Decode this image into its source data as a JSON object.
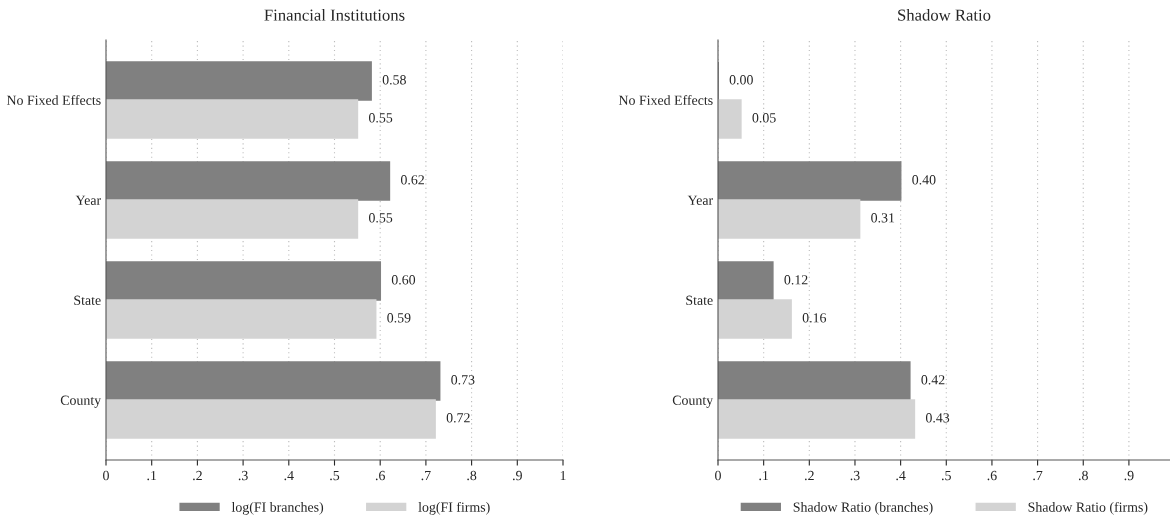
{
  "chart_data": [
    {
      "type": "bar",
      "orientation": "horizontal",
      "title": "Financial Institutions",
      "categories": [
        "No Fixed Effects",
        "Year",
        "State",
        "County"
      ],
      "series": [
        {
          "name": "log(FI branches)",
          "color": "#808080",
          "values": [
            0.58,
            0.62,
            0.6,
            0.73
          ],
          "value_labels": [
            "0.58",
            "0.62",
            "0.60",
            "0.73"
          ]
        },
        {
          "name": "log(FI firms)",
          "color": "#d3d3d3",
          "values": [
            0.55,
            0.55,
            0.59,
            0.72
          ],
          "value_labels": [
            "0.55",
            "0.55",
            "0.59",
            "0.72"
          ]
        }
      ],
      "xlim": [
        0,
        1
      ],
      "xticks": [
        0,
        {
          "value": 0.1,
          "label": ".1"
        },
        {
          "value": 0.2,
          "label": ".2"
        },
        {
          "value": 0.3,
          "label": ".3"
        },
        {
          "value": 0.4,
          "label": ".4"
        },
        {
          "value": 0.5,
          "label": ".5"
        },
        {
          "value": 0.6,
          "label": ".6"
        },
        {
          "value": 0.7,
          "label": ".7"
        },
        {
          "value": 0.8,
          "label": ".8"
        },
        {
          "value": 0.9,
          "label": ".9"
        },
        1
      ],
      "grid": "x",
      "legend": "bottom"
    },
    {
      "type": "bar",
      "orientation": "horizontal",
      "title": "Shadow Ratio",
      "categories": [
        "No Fixed Effects",
        "Year",
        "State",
        "County"
      ],
      "series": [
        {
          "name": "Shadow Ratio (branches)",
          "color": "#808080",
          "values": [
            0.0,
            0.4,
            0.12,
            0.42
          ],
          "value_labels": [
            "0.00",
            "0.40",
            "0.12",
            "0.42"
          ]
        },
        {
          "name": "Shadow Ratio (firms)",
          "color": "#d3d3d3",
          "values": [
            0.05,
            0.31,
            0.16,
            0.43
          ],
          "value_labels": [
            "0.05",
            "0.31",
            "0.16",
            "0.43"
          ]
        }
      ],
      "xlim": [
        0,
        0.99
      ],
      "xticks": [
        0,
        {
          "value": 0.1,
          "label": ".1"
        },
        {
          "value": 0.2,
          "label": ".2"
        },
        {
          "value": 0.3,
          "label": ".3"
        },
        {
          "value": 0.4,
          "label": ".4"
        },
        {
          "value": 0.5,
          "label": ".5"
        },
        {
          "value": 0.6,
          "label": ".6"
        },
        {
          "value": 0.7,
          "label": ".7"
        },
        {
          "value": 0.8,
          "label": ".8"
        },
        {
          "value": 0.9,
          "label": ".9"
        }
      ],
      "grid": "x",
      "legend": "bottom"
    }
  ]
}
